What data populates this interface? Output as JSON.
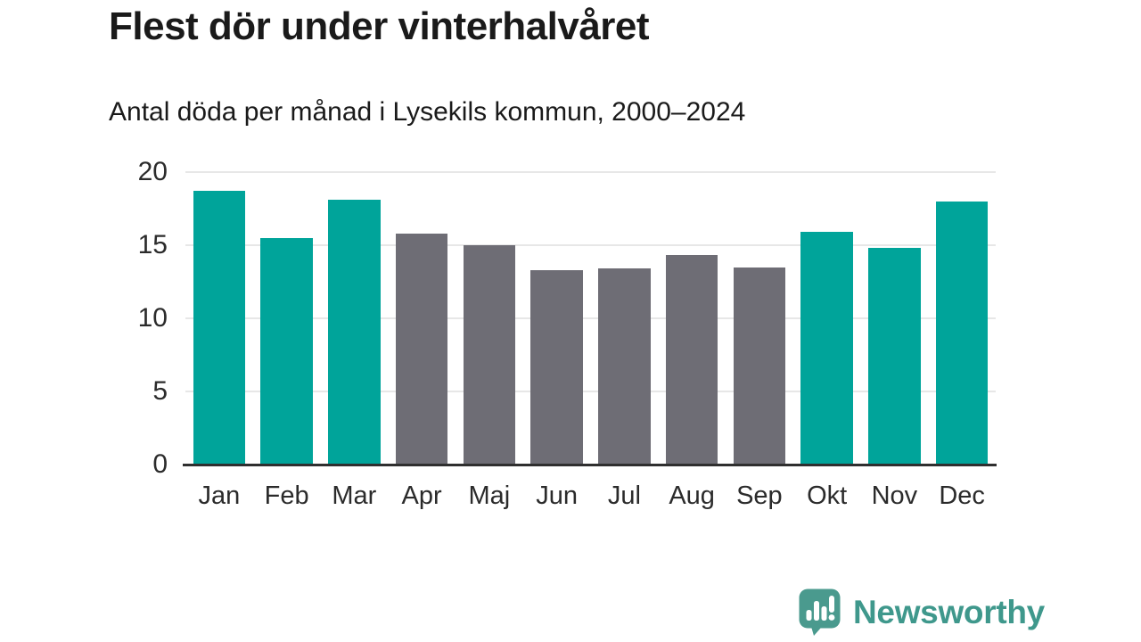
{
  "header": {
    "title": "Flest dör under vinterhalvåret",
    "subtitle": "Antal döda per månad i Lysekils kommun, 2000–2024"
  },
  "chart_data": {
    "type": "bar",
    "title": "Flest dör under vinterhalvåret",
    "subtitle": "Antal döda per månad i Lysekils kommun, 2000–2024",
    "categories": [
      "Jan",
      "Feb",
      "Mar",
      "Apr",
      "Maj",
      "Jun",
      "Jul",
      "Aug",
      "Sep",
      "Okt",
      "Nov",
      "Dec"
    ],
    "values": [
      18.7,
      15.5,
      18.1,
      15.8,
      15.0,
      13.3,
      13.4,
      14.3,
      13.5,
      15.9,
      14.8,
      18.0
    ],
    "highlighted_categories": [
      "Jan",
      "Feb",
      "Mar",
      "Okt",
      "Nov",
      "Dec"
    ],
    "colors": {
      "highlight": "#00a49a",
      "base": "#6e6d75"
    },
    "xlabel": "",
    "ylabel": "",
    "ylim": [
      0,
      20
    ],
    "y_ticks": [
      0,
      5,
      10,
      15,
      20
    ],
    "grid": "horizontal",
    "legend": "none"
  },
  "footer": {
    "brand": "Newsworthy",
    "brand_color": "#3f988c",
    "icon_color": "#4a9a8e"
  }
}
